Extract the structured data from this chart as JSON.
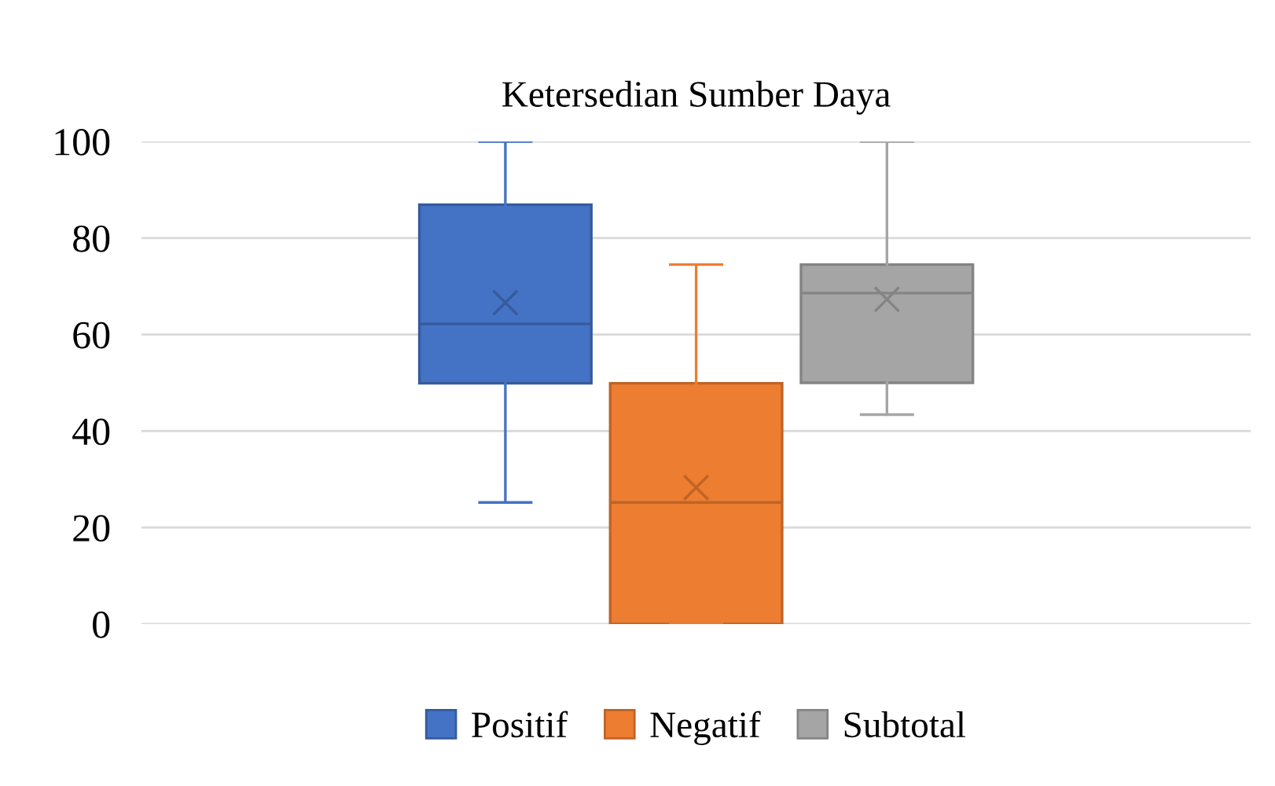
{
  "chart_data": {
    "type": "box",
    "title": "Ketersedian Sumber Daya",
    "categories": [
      null
    ],
    "series": [
      {
        "name": "Positif",
        "color": "#4472c4",
        "boxes": [
          {
            "low": 25.2,
            "q1": 49.9,
            "median": 62.2,
            "q3": 86.9,
            "high": 100,
            "mean": 66.6
          }
        ]
      },
      {
        "name": "Negatif",
        "color": "#ed7d31",
        "boxes": [
          {
            "low": 0,
            "q1": 0,
            "median": 25.2,
            "q3": 49.9,
            "high": 74.5,
            "mean": 28.3
          }
        ]
      },
      {
        "name": "Subtotal",
        "color": "#a5a5a5",
        "boxes": [
          {
            "low": 43.4,
            "q1": 50,
            "median": 68.6,
            "q3": 74.5,
            "high": 100,
            "mean": 67.3
          }
        ]
      }
    ],
    "ylim": [
      0,
      100
    ],
    "yticks": [
      0,
      20,
      40,
      60,
      80,
      100
    ],
    "grid": "y",
    "legend": "bottom"
  }
}
